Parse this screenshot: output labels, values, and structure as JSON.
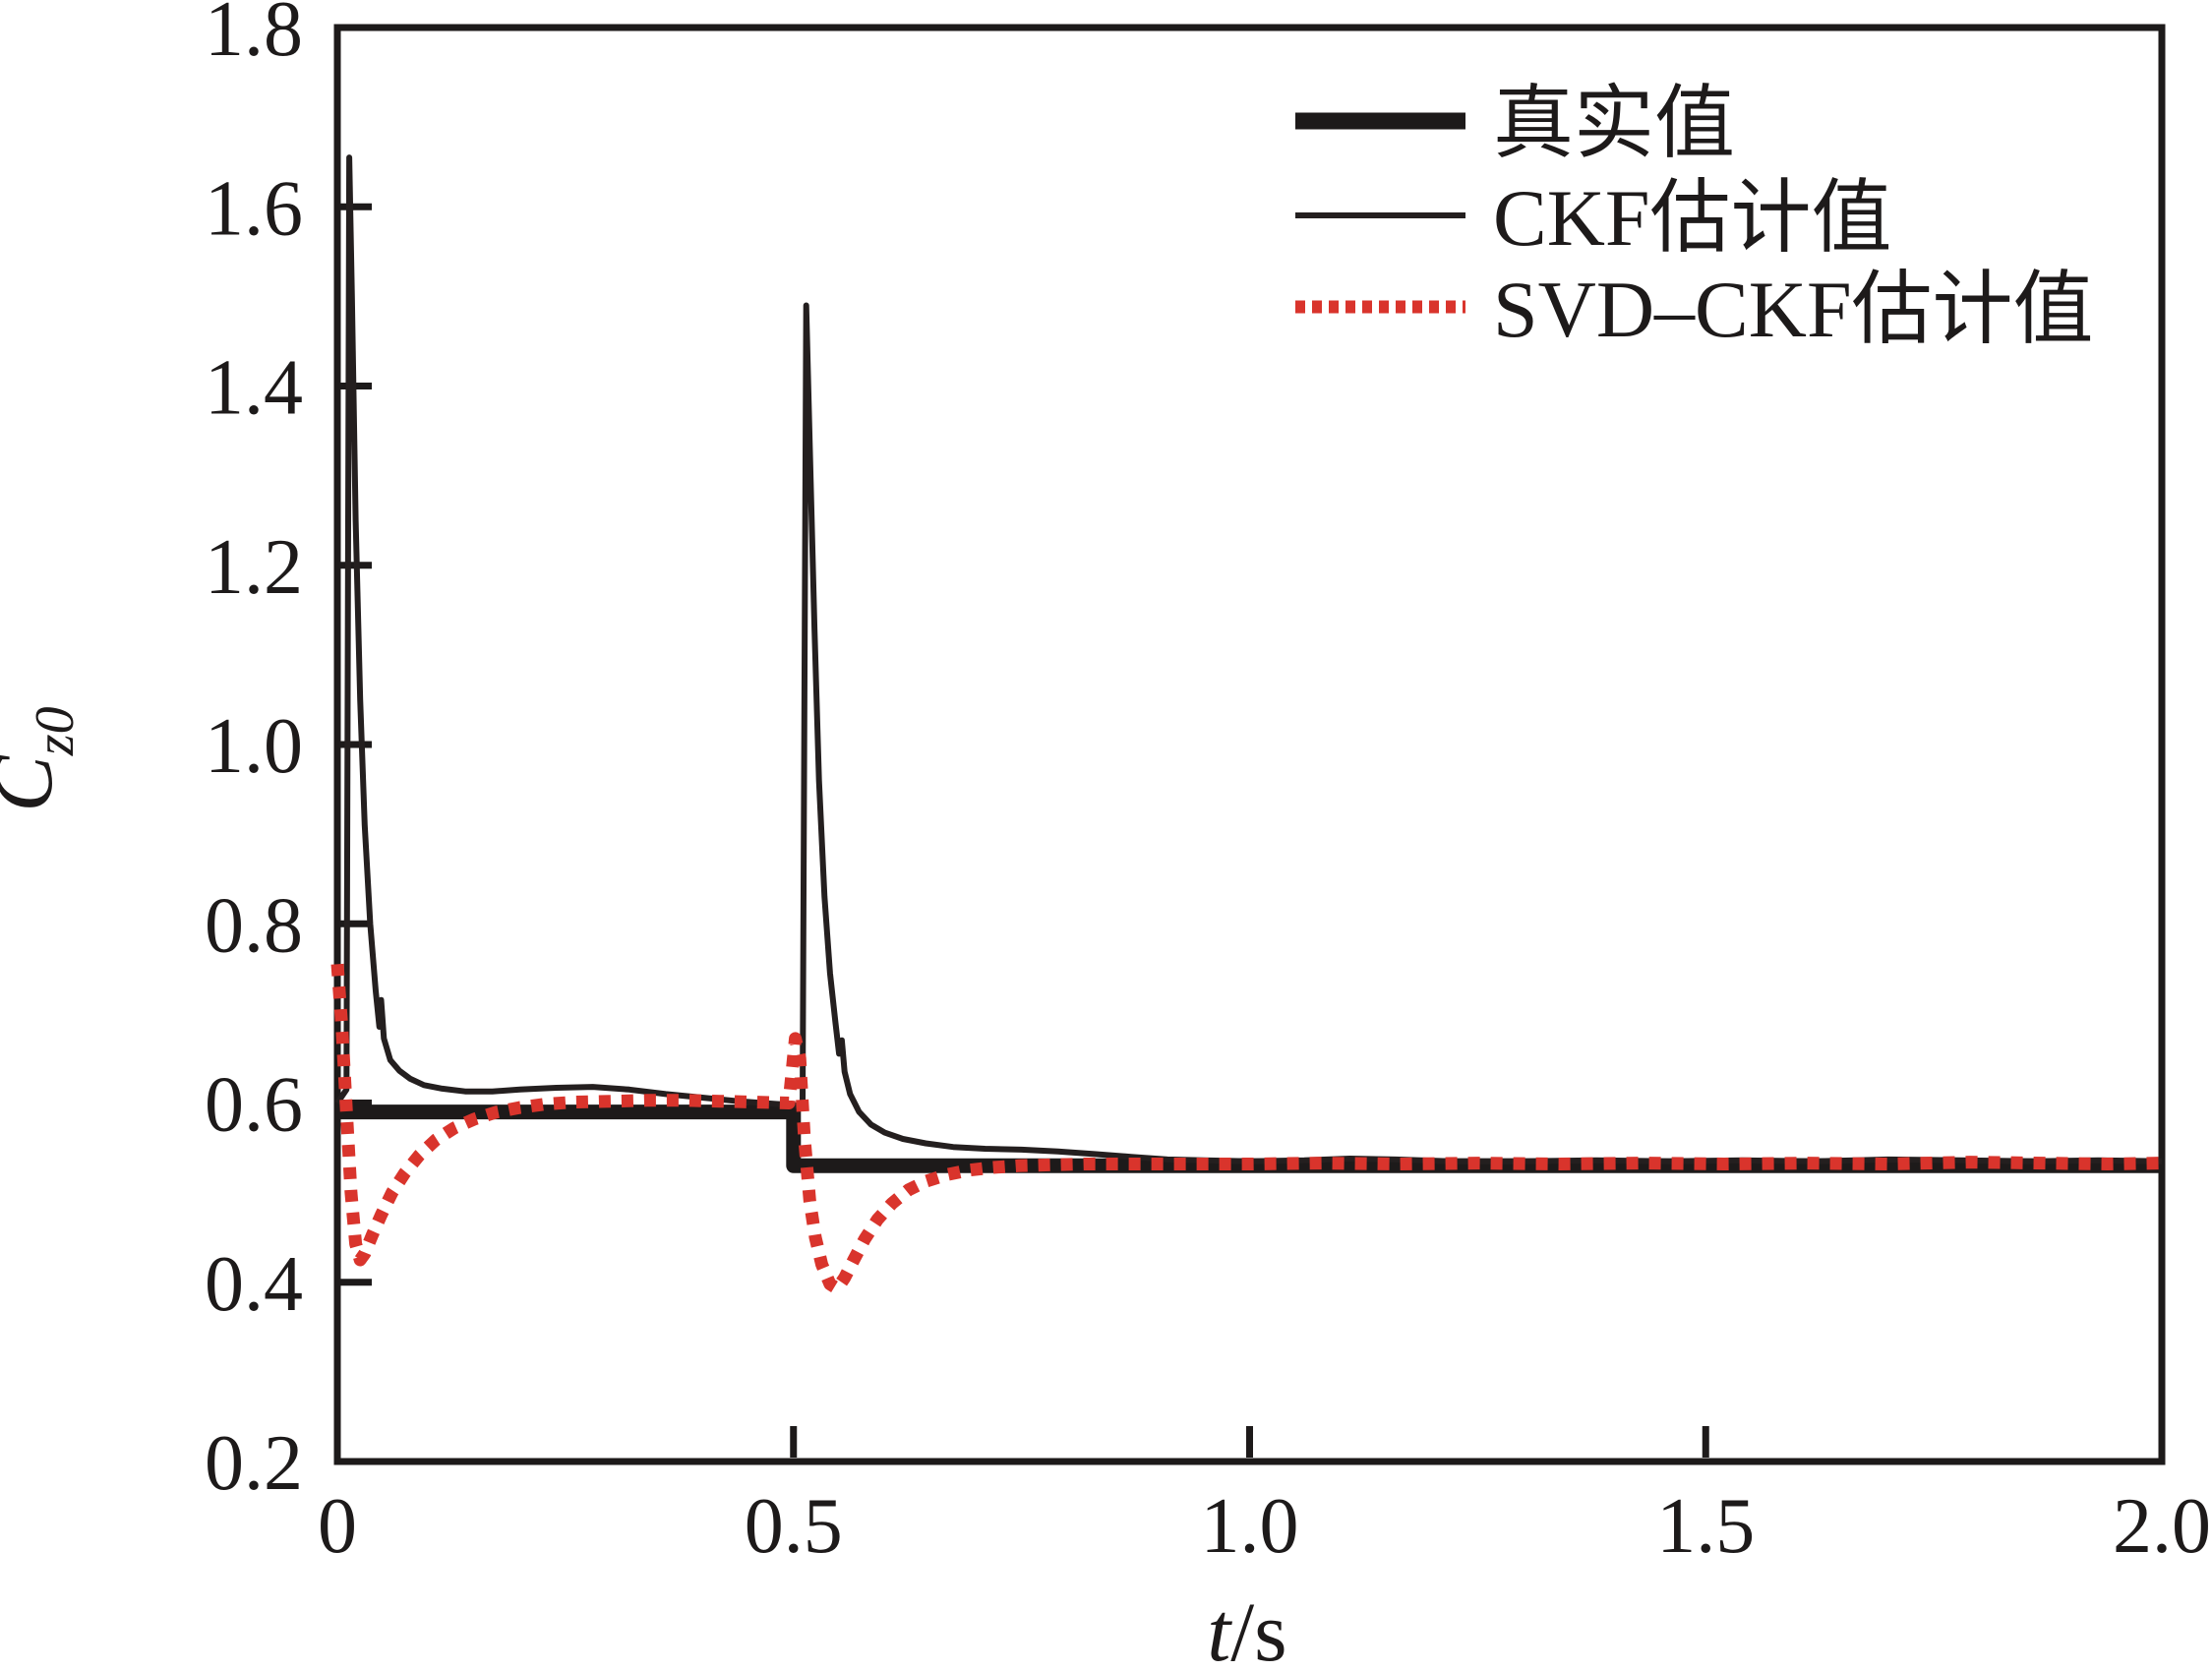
{
  "figure": {
    "background": "#ffffff",
    "axis_color": "#1d1a1a",
    "text_color": "#1d1a1a"
  },
  "chart_data": {
    "type": "line",
    "title": "",
    "xlabel_variable": "t",
    "xlabel_unit": "/s",
    "ylabel_variable": "C",
    "ylabel_subscript": "z0",
    "xlim": [
      0,
      2.0
    ],
    "ylim": [
      0.2,
      1.8
    ],
    "x_ticks": [
      "0",
      "0.5",
      "1.0",
      "1.5",
      "2.0"
    ],
    "y_ticks": [
      "0.2",
      "0.4",
      "0.6",
      "0.8",
      "1.0",
      "1.2",
      "1.4",
      "1.6",
      "1.8"
    ],
    "grid": false,
    "legend_position": "top-right-inside",
    "series": [
      {
        "name": "真实值",
        "color": "#1d1a1a",
        "line_style": "solid-thick",
        "points": [
          [
            0,
            0.59
          ],
          [
            0.5,
            0.59
          ],
          [
            0.5,
            0.53
          ],
          [
            2.0,
            0.53
          ]
        ]
      },
      {
        "name": "CKF估计值",
        "color": "#241f1f",
        "line_style": "solid-thin",
        "points": [
          [
            0,
            0.6
          ],
          [
            0.01,
            0.615
          ],
          [
            0.013,
            1.655
          ],
          [
            0.016,
            1.5
          ],
          [
            0.02,
            1.25
          ],
          [
            0.025,
            1.05
          ],
          [
            0.03,
            0.91
          ],
          [
            0.036,
            0.8
          ],
          [
            0.042,
            0.725
          ],
          [
            0.046,
            0.685
          ],
          [
            0.048,
            0.715
          ],
          [
            0.051,
            0.672
          ],
          [
            0.058,
            0.648
          ],
          [
            0.068,
            0.636
          ],
          [
            0.08,
            0.627
          ],
          [
            0.095,
            0.62
          ],
          [
            0.115,
            0.616
          ],
          [
            0.14,
            0.613
          ],
          [
            0.17,
            0.613
          ],
          [
            0.2,
            0.615
          ],
          [
            0.24,
            0.617
          ],
          [
            0.28,
            0.618
          ],
          [
            0.32,
            0.615
          ],
          [
            0.36,
            0.61
          ],
          [
            0.4,
            0.606
          ],
          [
            0.44,
            0.602
          ],
          [
            0.48,
            0.599
          ],
          [
            0.51,
            0.597
          ],
          [
            0.514,
            1.49
          ],
          [
            0.518,
            1.33
          ],
          [
            0.523,
            1.13
          ],
          [
            0.528,
            0.96
          ],
          [
            0.534,
            0.83
          ],
          [
            0.54,
            0.745
          ],
          [
            0.546,
            0.69
          ],
          [
            0.55,
            0.655
          ],
          [
            0.553,
            0.67
          ],
          [
            0.556,
            0.635
          ],
          [
            0.562,
            0.61
          ],
          [
            0.572,
            0.59
          ],
          [
            0.585,
            0.576
          ],
          [
            0.6,
            0.567
          ],
          [
            0.62,
            0.56
          ],
          [
            0.645,
            0.555
          ],
          [
            0.675,
            0.551
          ],
          [
            0.71,
            0.549
          ],
          [
            0.75,
            0.548
          ],
          [
            0.79,
            0.546
          ],
          [
            0.83,
            0.543
          ],
          [
            0.87,
            0.54
          ],
          [
            0.91,
            0.537
          ],
          [
            0.95,
            0.536
          ],
          [
            1.0,
            0.535
          ],
          [
            1.06,
            0.536
          ],
          [
            1.11,
            0.538
          ],
          [
            1.16,
            0.537
          ],
          [
            1.22,
            0.535
          ],
          [
            1.3,
            0.535
          ],
          [
            1.38,
            0.536
          ],
          [
            1.46,
            0.535
          ],
          [
            1.54,
            0.536
          ],
          [
            1.62,
            0.535
          ],
          [
            1.7,
            0.537
          ],
          [
            1.78,
            0.536
          ],
          [
            1.86,
            0.535
          ],
          [
            1.93,
            0.536
          ],
          [
            2.0,
            0.535
          ]
        ]
      },
      {
        "name": "SVD-CKF估计值",
        "color": "#d9342c",
        "line_style": "dotted",
        "points": [
          [
            0,
            0.755
          ],
          [
            0.005,
            0.685
          ],
          [
            0.01,
            0.59
          ],
          [
            0.015,
            0.5
          ],
          [
            0.02,
            0.443
          ],
          [
            0.025,
            0.425
          ],
          [
            0.03,
            0.432
          ],
          [
            0.038,
            0.452
          ],
          [
            0.048,
            0.475
          ],
          [
            0.06,
            0.5
          ],
          [
            0.074,
            0.522
          ],
          [
            0.09,
            0.542
          ],
          [
            0.108,
            0.559
          ],
          [
            0.128,
            0.572
          ],
          [
            0.15,
            0.582
          ],
          [
            0.175,
            0.59
          ],
          [
            0.2,
            0.595
          ],
          [
            0.23,
            0.599
          ],
          [
            0.26,
            0.601
          ],
          [
            0.3,
            0.602
          ],
          [
            0.34,
            0.603
          ],
          [
            0.38,
            0.603
          ],
          [
            0.42,
            0.602
          ],
          [
            0.46,
            0.601
          ],
          [
            0.495,
            0.6
          ],
          [
            0.502,
            0.672
          ],
          [
            0.507,
            0.65
          ],
          [
            0.512,
            0.56
          ],
          [
            0.518,
            0.49
          ],
          [
            0.524,
            0.45
          ],
          [
            0.531,
            0.42
          ],
          [
            0.54,
            0.398
          ],
          [
            0.548,
            0.393
          ],
          [
            0.556,
            0.405
          ],
          [
            0.566,
            0.425
          ],
          [
            0.578,
            0.448
          ],
          [
            0.592,
            0.47
          ],
          [
            0.608,
            0.488
          ],
          [
            0.626,
            0.503
          ],
          [
            0.646,
            0.513
          ],
          [
            0.668,
            0.52
          ],
          [
            0.692,
            0.525
          ],
          [
            0.718,
            0.528
          ],
          [
            0.746,
            0.53
          ],
          [
            0.78,
            0.531
          ],
          [
            0.82,
            0.532
          ],
          [
            0.87,
            0.532
          ],
          [
            0.93,
            0.532
          ],
          [
            1.0,
            0.532
          ],
          [
            1.08,
            0.533
          ],
          [
            1.16,
            0.532
          ],
          [
            1.25,
            0.533
          ],
          [
            1.34,
            0.532
          ],
          [
            1.43,
            0.533
          ],
          [
            1.52,
            0.532
          ],
          [
            1.61,
            0.533
          ],
          [
            1.7,
            0.532
          ],
          [
            1.79,
            0.534
          ],
          [
            1.87,
            0.533
          ],
          [
            1.94,
            0.532
          ],
          [
            2.0,
            0.533
          ]
        ]
      }
    ]
  }
}
